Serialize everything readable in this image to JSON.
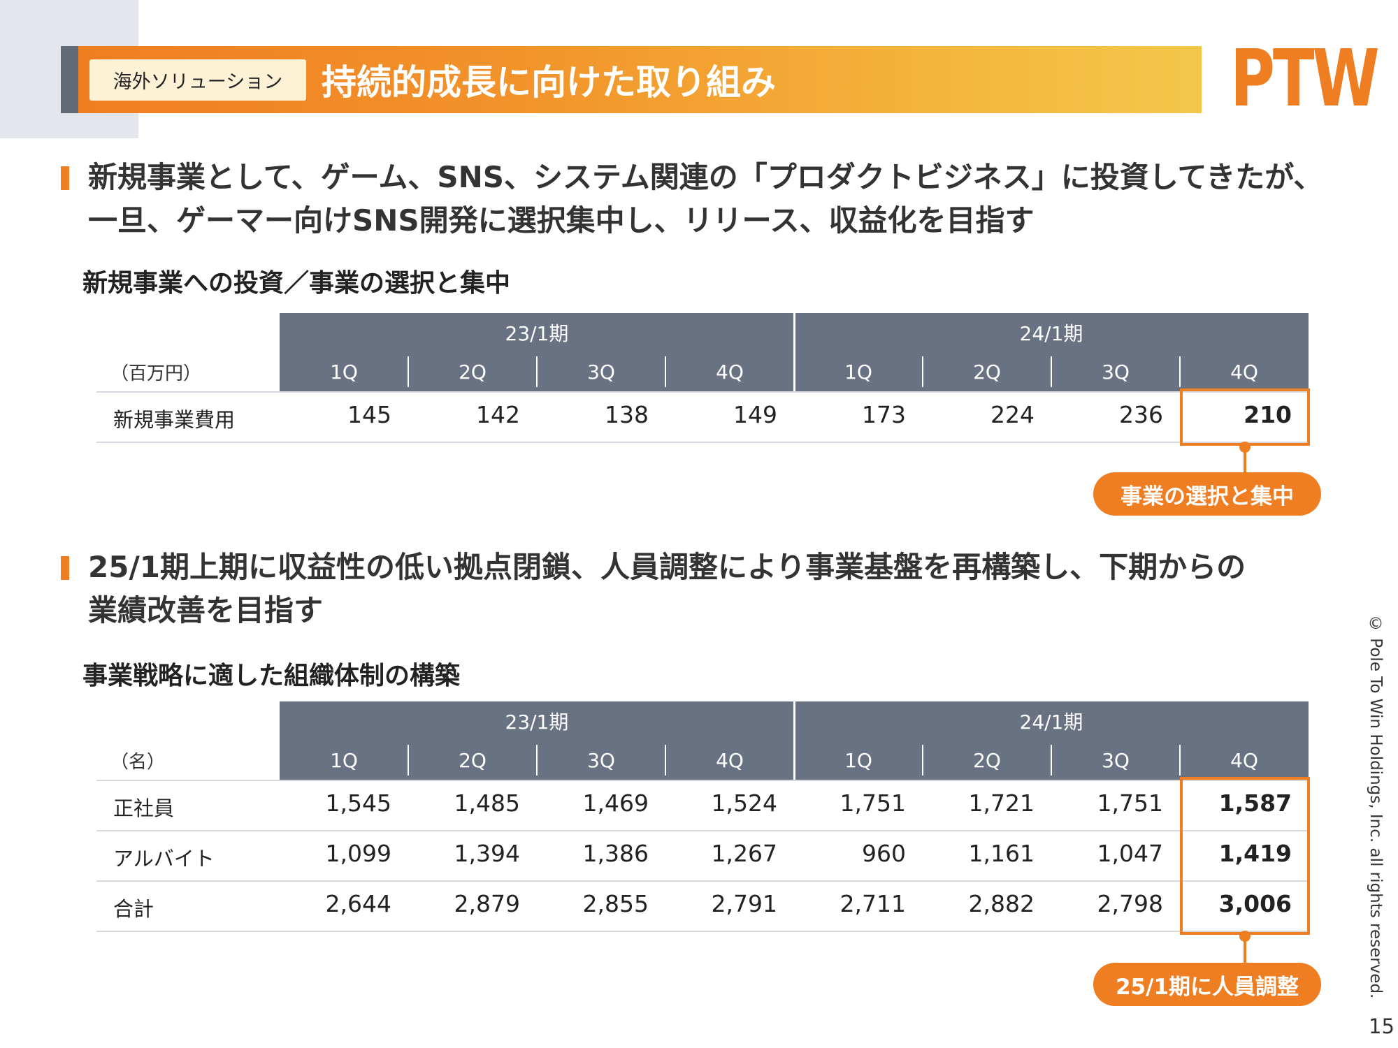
{
  "header": {
    "category_tag": "海外ソリューション",
    "title": "持続的成長に向けた取り組み",
    "logo_text": "PTW"
  },
  "bullets": [
    {
      "line1": "新規事業として、ゲーム、SNS、システム関連の「プロダクトビジネス」に投資してきたが、",
      "line2": "一旦、ゲーマー向けSNS開発に選択集中し、リリース、収益化を目指す"
    },
    {
      "line1": "25/1期上期に収益性の低い拠点閉鎖、人員調整により事業基盤を再構築し、下期からの",
      "line2": "業績改善を目指す"
    }
  ],
  "table1": {
    "heading": "新規事業への投資／事業の選択と集中",
    "unit": "（百万円）",
    "periods": [
      "23/1期",
      "24/1期"
    ],
    "quarters": [
      "1Q",
      "2Q",
      "3Q",
      "4Q",
      "1Q",
      "2Q",
      "3Q",
      "4Q"
    ],
    "rows": [
      {
        "label": "新規事業費用",
        "values": [
          "145",
          "142",
          "138",
          "149",
          "173",
          "224",
          "236",
          "210"
        ]
      }
    ],
    "callout": "事業の選択と集中"
  },
  "table2": {
    "heading": "事業戦略に適した組織体制の構築",
    "unit": "（名）",
    "periods": [
      "23/1期",
      "24/1期"
    ],
    "quarters": [
      "1Q",
      "2Q",
      "3Q",
      "4Q",
      "1Q",
      "2Q",
      "3Q",
      "4Q"
    ],
    "rows": [
      {
        "label": "正社員",
        "values": [
          "1,545",
          "1,485",
          "1,469",
          "1,524",
          "1,751",
          "1,721",
          "1,751",
          "1,587"
        ]
      },
      {
        "label": "アルバイト",
        "values": [
          "1,099",
          "1,394",
          "1,386",
          "1,267",
          "960",
          "1,161",
          "1,047",
          "1,419"
        ]
      },
      {
        "label": "合計",
        "values": [
          "2,644",
          "2,879",
          "2,855",
          "2,791",
          "2,711",
          "2,882",
          "2,798",
          "3,006"
        ]
      }
    ],
    "callout": "25/1期に人員調整"
  },
  "footer": {
    "copyright": "© Pole To Win Holdings, Inc. all rights reserved.",
    "page_number": "15"
  },
  "colors": {
    "accent": "#ef7d22",
    "header_gray": "#687282",
    "title_edge": "#616b78"
  }
}
